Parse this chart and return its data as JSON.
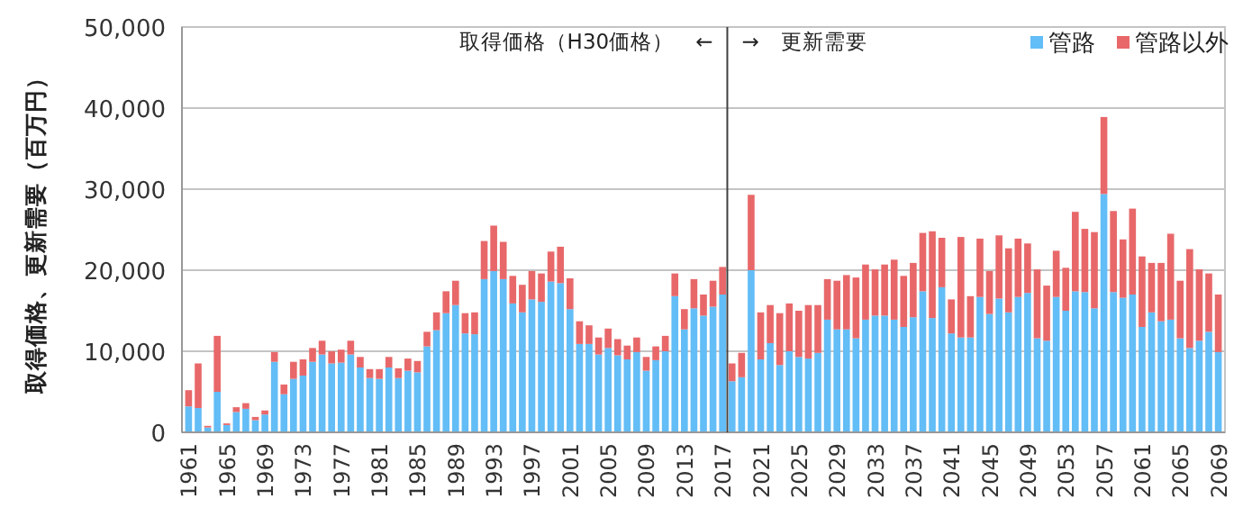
{
  "chart_data": {
    "type": "bar",
    "stacked": true,
    "ylabel": "取得価格、更新需要（百万円）",
    "x": [
      1961,
      1962,
      1963,
      1964,
      1965,
      1966,
      1967,
      1968,
      1969,
      1970,
      1971,
      1972,
      1973,
      1974,
      1975,
      1976,
      1977,
      1978,
      1979,
      1980,
      1981,
      1982,
      1983,
      1984,
      1985,
      1986,
      1987,
      1988,
      1989,
      1990,
      1991,
      1992,
      1993,
      1994,
      1995,
      1996,
      1997,
      1998,
      1999,
      2000,
      2001,
      2002,
      2003,
      2004,
      2005,
      2006,
      2007,
      2008,
      2009,
      2010,
      2011,
      2012,
      2013,
      2014,
      2015,
      2016,
      2017,
      2018,
      2019,
      2020,
      2021,
      2022,
      2023,
      2024,
      2025,
      2026,
      2027,
      2028,
      2029,
      2030,
      2031,
      2032,
      2033,
      2034,
      2035,
      2036,
      2037,
      2038,
      2039,
      2040,
      2041,
      2042,
      2043,
      2044,
      2045,
      2046,
      2047,
      2048,
      2049,
      2050,
      2051,
      2052,
      2053,
      2054,
      2055,
      2056,
      2057,
      2058,
      2059,
      2060,
      2061,
      2062,
      2063,
      2064,
      2065,
      2066,
      2067,
      2068,
      2069
    ],
    "xlim": [
      1960.3,
      2069.7
    ],
    "xticks": [
      1961,
      1965,
      1969,
      1973,
      1977,
      1981,
      1985,
      1989,
      1993,
      1997,
      2001,
      2005,
      2009,
      2013,
      2017,
      2021,
      2025,
      2029,
      2033,
      2037,
      2041,
      2045,
      2049,
      2053,
      2057,
      2061,
      2065,
      2069
    ],
    "ylim": [
      0,
      50000
    ],
    "yticks": [
      0,
      {
        "value": 10000,
        "label": "10,000"
      },
      {
        "value": 20000,
        "label": "20,000"
      },
      {
        "value": 30000,
        "label": "30,000"
      },
      {
        "value": 40000,
        "label": "40,000"
      },
      {
        "value": 50000,
        "label": "50,000"
      }
    ],
    "grid": "y",
    "legend": "top right",
    "series": [
      {
        "name": "管路",
        "color": "#63bdf6",
        "values": [
          3200,
          3000,
          600,
          5000,
          900,
          2500,
          2900,
          1500,
          2200,
          8700,
          4700,
          6600,
          7000,
          8700,
          9600,
          8500,
          8600,
          9600,
          8000,
          6700,
          6600,
          8000,
          6700,
          7600,
          7400,
          10600,
          12600,
          14700,
          15700,
          12200,
          12100,
          18900,
          19900,
          18900,
          15900,
          14800,
          16400,
          16100,
          18600,
          18400,
          15200,
          10900,
          10900,
          9600,
          10400,
          9500,
          9000,
          9900,
          7600,
          8900,
          10000,
          16800,
          12700,
          15300,
          14400,
          15500,
          17000,
          6300,
          6800,
          20000,
          9000,
          11000,
          8300,
          10000,
          9300,
          9100,
          9800,
          13900,
          12700,
          12700,
          11600,
          13900,
          14400,
          14400,
          13900,
          13000,
          14200,
          17400,
          14100,
          17900,
          12200,
          11700,
          11700,
          16700,
          14600,
          16500,
          14800,
          16700,
          17200,
          11600,
          11300,
          16700,
          15000,
          17400,
          17300,
          15300,
          29400,
          17300,
          16600,
          17000,
          13000,
          14800,
          13700,
          13900,
          11600,
          10400,
          11300,
          12400,
          9900
        ]
      },
      {
        "name": "管路以外",
        "color": "#e8686a",
        "values": [
          2000,
          5500,
          200,
          6900,
          200,
          600,
          700,
          400,
          500,
          1200,
          1200,
          2100,
          2000,
          1700,
          1700,
          1500,
          1600,
          1700,
          1300,
          1100,
          1200,
          1300,
          1200,
          1500,
          1400,
          1800,
          2200,
          2700,
          3000,
          2500,
          2700,
          4700,
          5600,
          4600,
          3400,
          3400,
          3500,
          3500,
          3700,
          4500,
          3800,
          2800,
          2300,
          2100,
          2400,
          2000,
          1700,
          1800,
          1700,
          1700,
          1900,
          2800,
          2500,
          3600,
          2600,
          3200,
          3400,
          2200,
          3000,
          9300,
          5800,
          4700,
          6400,
          5900,
          5700,
          6600,
          5900,
          5000,
          6000,
          6700,
          7500,
          6800,
          5700,
          6300,
          7400,
          6300,
          6700,
          7200,
          10700,
          6100,
          4200,
          12400,
          5100,
          7200,
          5300,
          7800,
          7900,
          7200,
          6100,
          8500,
          6800,
          5700,
          5300,
          9800,
          7800,
          9400,
          9500,
          10000,
          7200,
          10600,
          8700,
          6100,
          7200,
          10600,
          7100,
          12200,
          8800,
          7200,
          7100
        ]
      }
    ],
    "ref_lines": [
      {
        "axis": "x",
        "value": 2017.5,
        "color": "#404040"
      }
    ],
    "annotations": [
      "取得価格（H30価格）　←",
      "→　更新需要"
    ]
  }
}
